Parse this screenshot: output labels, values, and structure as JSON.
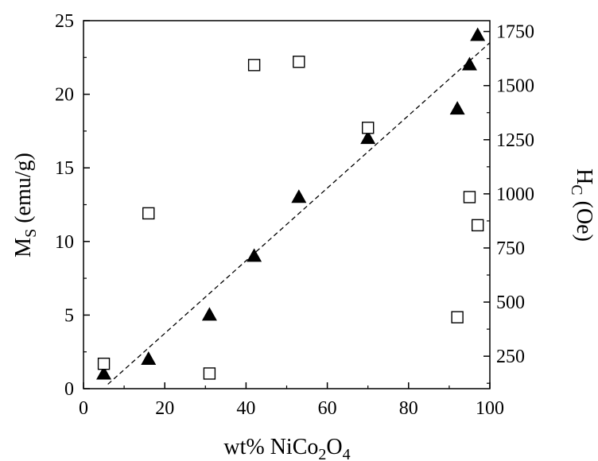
{
  "chart_data": {
    "type": "scatter",
    "x_axis": {
      "range": [
        0,
        100
      ],
      "ticks": [
        0,
        20,
        40,
        60,
        80,
        100
      ],
      "label_parts": [
        "wt% NiCo",
        "2",
        "O",
        "4"
      ]
    },
    "y_left": {
      "range": [
        0,
        25
      ],
      "ticks": [
        0,
        5,
        10,
        15,
        20,
        25
      ],
      "label_parts": [
        "M",
        "S",
        " (emu/g)"
      ]
    },
    "y_right": {
      "range": [
        100,
        1800
      ],
      "ticks": [
        250,
        500,
        750,
        1000,
        1250,
        1500,
        1750
      ],
      "label_parts": [
        "H",
        "C",
        " (Oe)"
      ]
    },
    "series": [
      {
        "marker": "filled-triangle",
        "axis": "left",
        "color": "#000000",
        "points": [
          {
            "x": 5,
            "y": 1.0
          },
          {
            "x": 16,
            "y": 2.0
          },
          {
            "x": 31,
            "y": 5.0
          },
          {
            "x": 42,
            "y": 9.0
          },
          {
            "x": 53,
            "y": 13.0
          },
          {
            "x": 70,
            "y": 17.0
          },
          {
            "x": 92,
            "y": 19.0
          },
          {
            "x": 95,
            "y": 22.0
          },
          {
            "x": 97,
            "y": 24.0
          }
        ]
      },
      {
        "marker": "open-square",
        "axis": "right",
        "color": "#000000",
        "points": [
          {
            "x": 5,
            "y": 215
          },
          {
            "x": 16,
            "y": 910
          },
          {
            "x": 31,
            "y": 170
          },
          {
            "x": 42,
            "y": 1595
          },
          {
            "x": 53,
            "y": 1610
          },
          {
            "x": 70,
            "y": 1305
          },
          {
            "x": 92,
            "y": 430
          },
          {
            "x": 95,
            "y": 985
          },
          {
            "x": 97,
            "y": 855
          }
        ]
      }
    ],
    "fit_line": {
      "style": "dashed",
      "axis": "left",
      "points": [
        {
          "x": 6,
          "y": 0.3
        },
        {
          "x": 100,
          "y": 23.5
        }
      ]
    },
    "grid": false,
    "legend": "none"
  }
}
